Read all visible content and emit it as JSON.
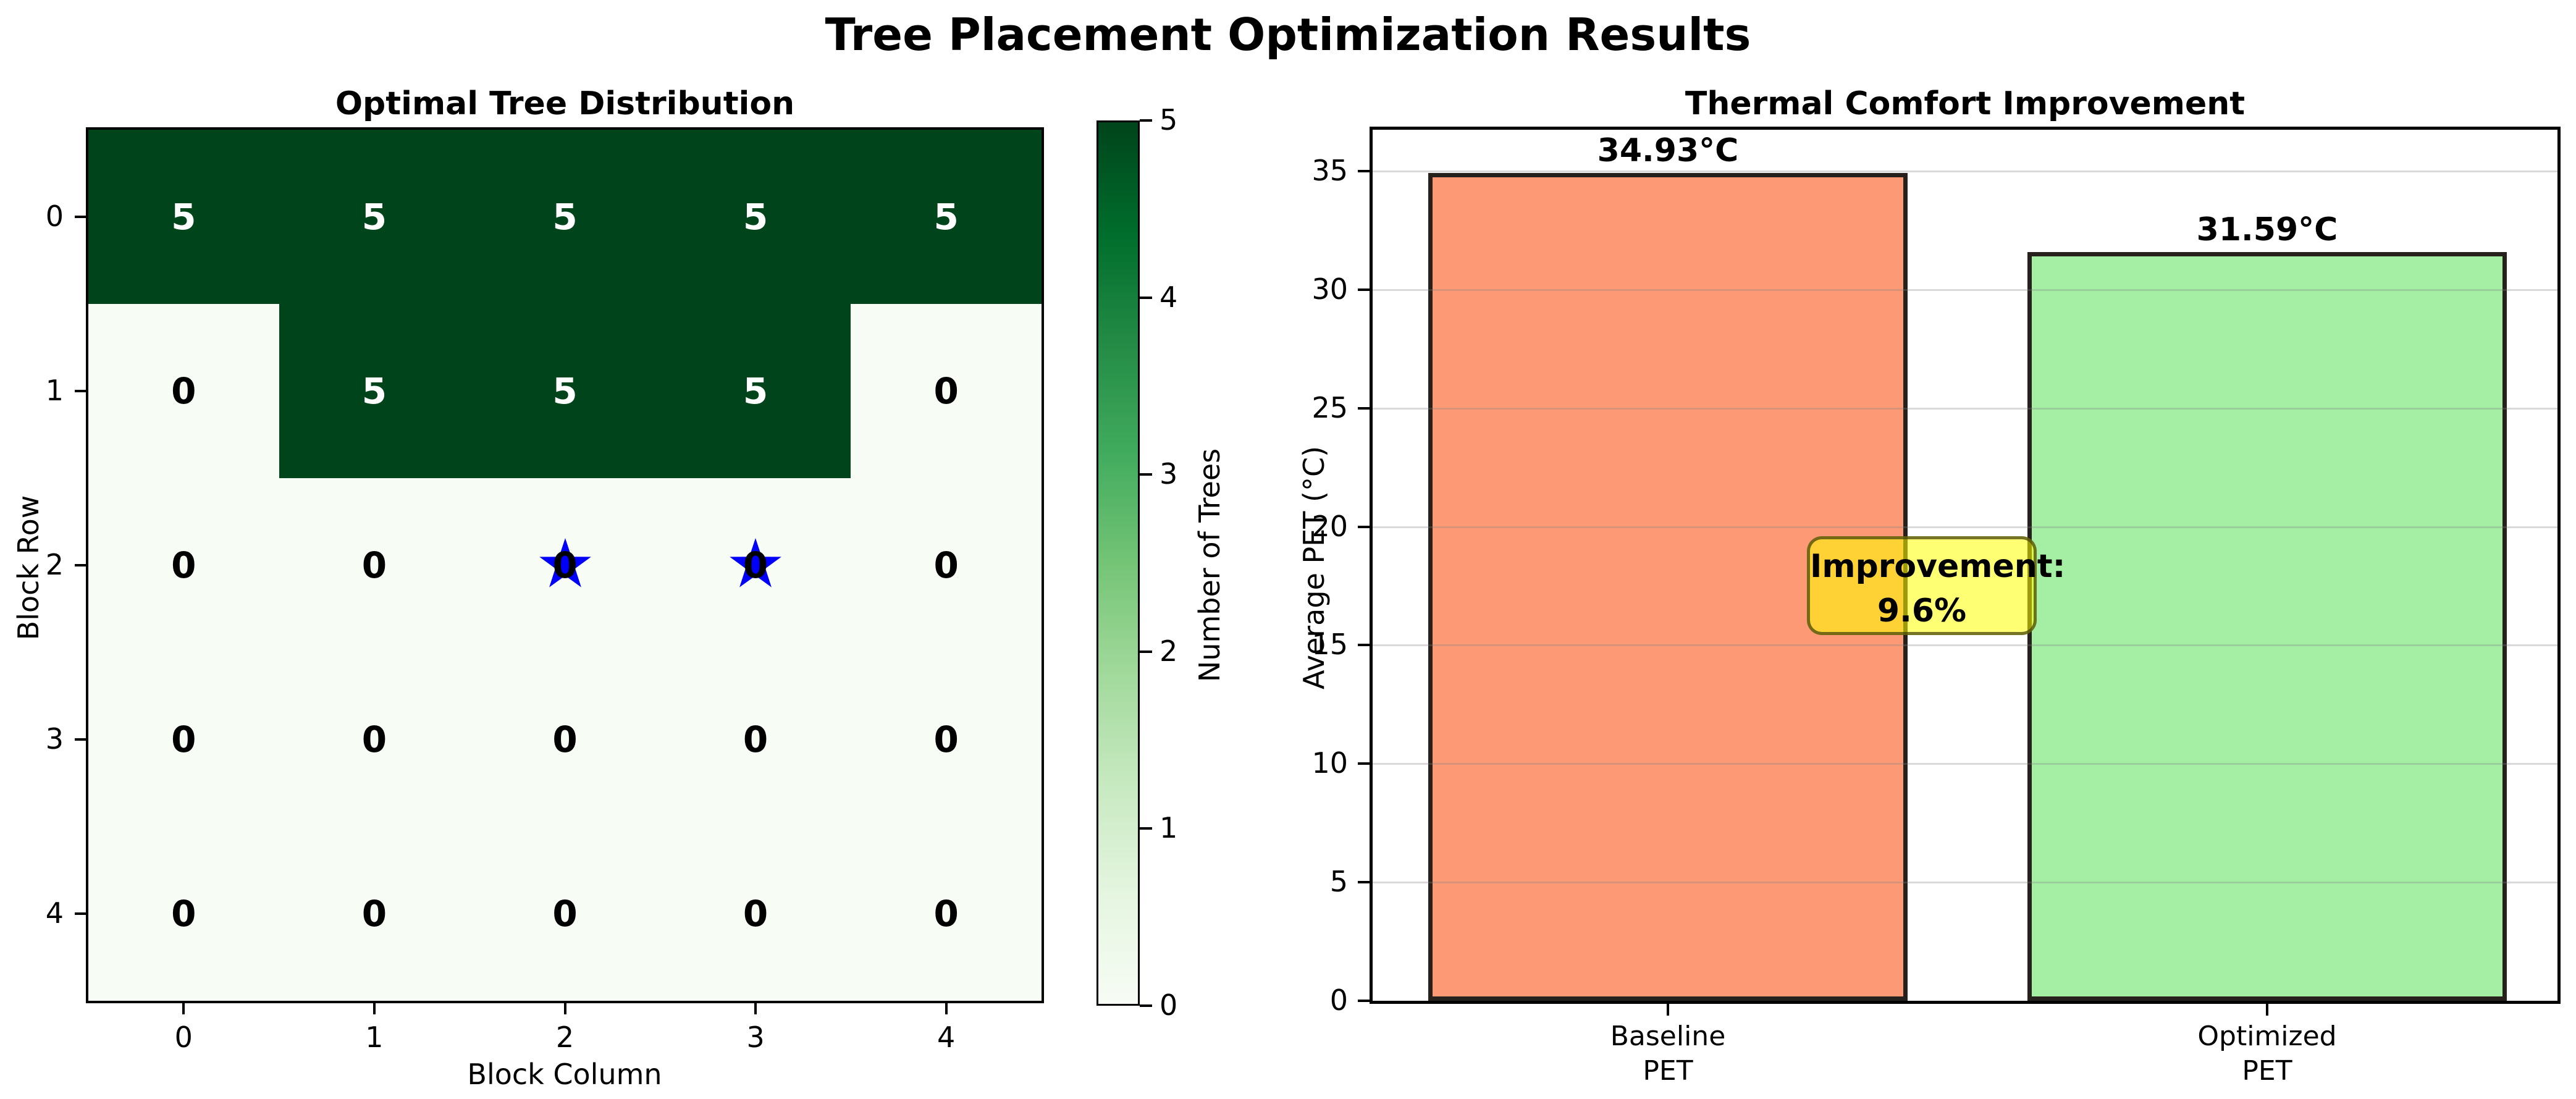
{
  "figure": {
    "title": "Tree Placement Optimization Results"
  },
  "heatmap": {
    "title": "Optimal Tree Distribution",
    "xlabel": "Block Column",
    "ylabel": "Block Row",
    "row_ticks": [
      "0",
      "1",
      "2",
      "3",
      "4"
    ],
    "col_ticks": [
      "0",
      "1",
      "2",
      "3",
      "4"
    ],
    "grid": [
      [
        5,
        5,
        5,
        5,
        5
      ],
      [
        0,
        5,
        5,
        5,
        0
      ],
      [
        0,
        0,
        0,
        0,
        0
      ],
      [
        0,
        0,
        0,
        0,
        0
      ],
      [
        0,
        0,
        0,
        0,
        0
      ]
    ],
    "stars": [
      {
        "row": 2,
        "col": 2
      },
      {
        "row": 2,
        "col": 3
      }
    ],
    "colors": {
      "cell_high": "#00441b",
      "cell_low": "#f7fcf5",
      "label_on_high": "#ffffff",
      "label_on_low": "#000000",
      "star": "#0000fa"
    }
  },
  "colorbar": {
    "label": "Number of Trees",
    "ticks": [
      "0",
      "1",
      "2",
      "3",
      "4",
      "5"
    ],
    "gradient_stops": [
      "#f7fcf5",
      "#e5f5e0",
      "#c7e9c0",
      "#a1d99b",
      "#74c476",
      "#41ab5d",
      "#238b45",
      "#006d2c",
      "#00441b"
    ]
  },
  "bar_chart": {
    "title": "Thermal Comfort Improvement",
    "ylabel": "Average PET (°C)",
    "y_ticks": [
      0,
      5,
      10,
      15,
      20,
      25,
      30,
      35
    ],
    "categories": [
      [
        "Baseline",
        "PET"
      ],
      [
        "Optimized",
        "PET"
      ]
    ],
    "values": [
      34.93,
      31.59
    ],
    "bar_labels": [
      "34.93°C",
      "31.59°C"
    ],
    "bar_colors": [
      "#fd9a75",
      "#a5efa5"
    ],
    "bar_edge_color": "#26211c",
    "grid_color": "rgba(128,128,128,0.30)",
    "annotation": {
      "line1": "Improvement:",
      "line2": "9.6%",
      "bg": "rgba(255,255,0,0.55)",
      "border": "rgba(70,70,10,0.75)"
    }
  },
  "chart_data": [
    {
      "type": "heatmap",
      "title": "Optimal Tree Distribution",
      "xlabel": "Block Column",
      "ylabel": "Block Row",
      "x": [
        0,
        1,
        2,
        3,
        4
      ],
      "y": [
        0,
        1,
        2,
        3,
        4
      ],
      "values": [
        [
          5,
          5,
          5,
          5,
          5
        ],
        [
          0,
          5,
          5,
          5,
          0
        ],
        [
          0,
          0,
          0,
          0,
          0
        ],
        [
          0,
          0,
          0,
          0,
          0
        ],
        [
          0,
          0,
          0,
          0,
          0
        ]
      ],
      "colormap": "Greens",
      "colorbar_label": "Number of Trees",
      "colorbar_range": [
        0,
        5
      ],
      "markers": [
        {
          "shape": "star",
          "color": "blue",
          "x": 2,
          "y": 2
        },
        {
          "shape": "star",
          "color": "blue",
          "x": 3,
          "y": 2
        }
      ]
    },
    {
      "type": "bar",
      "title": "Thermal Comfort Improvement",
      "ylabel": "Average PET (°C)",
      "categories": [
        "Baseline PET",
        "Optimized PET"
      ],
      "values": [
        34.93,
        31.59
      ],
      "bar_labels": [
        "34.93°C",
        "31.59°C"
      ],
      "bar_colors": [
        "lightsalmon",
        "lightgreen"
      ],
      "ylim": [
        0,
        36.75
      ],
      "grid": true,
      "annotations": [
        {
          "text": "Improvement: 9.6%",
          "x_between_bars": true,
          "y": 17.5
        }
      ]
    }
  ]
}
